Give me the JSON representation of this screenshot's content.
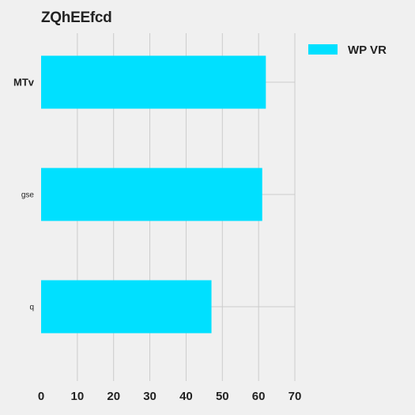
{
  "chart_data": {
    "type": "bar",
    "orientation": "horizontal",
    "title": "ZQhEEfcd",
    "categories": [
      "MTv",
      "gse",
      "q"
    ],
    "series": [
      {
        "name": "WP VR",
        "values": [
          62,
          61,
          47
        ],
        "color": "#00e0ff"
      }
    ],
    "xlim": [
      0,
      70
    ],
    "xticks": [
      0,
      10,
      20,
      30,
      40,
      50,
      60,
      70
    ],
    "grid": true,
    "legend_position": "top-right",
    "background_color": "#f0f0f0",
    "grid_color": "#cbcbcb"
  }
}
